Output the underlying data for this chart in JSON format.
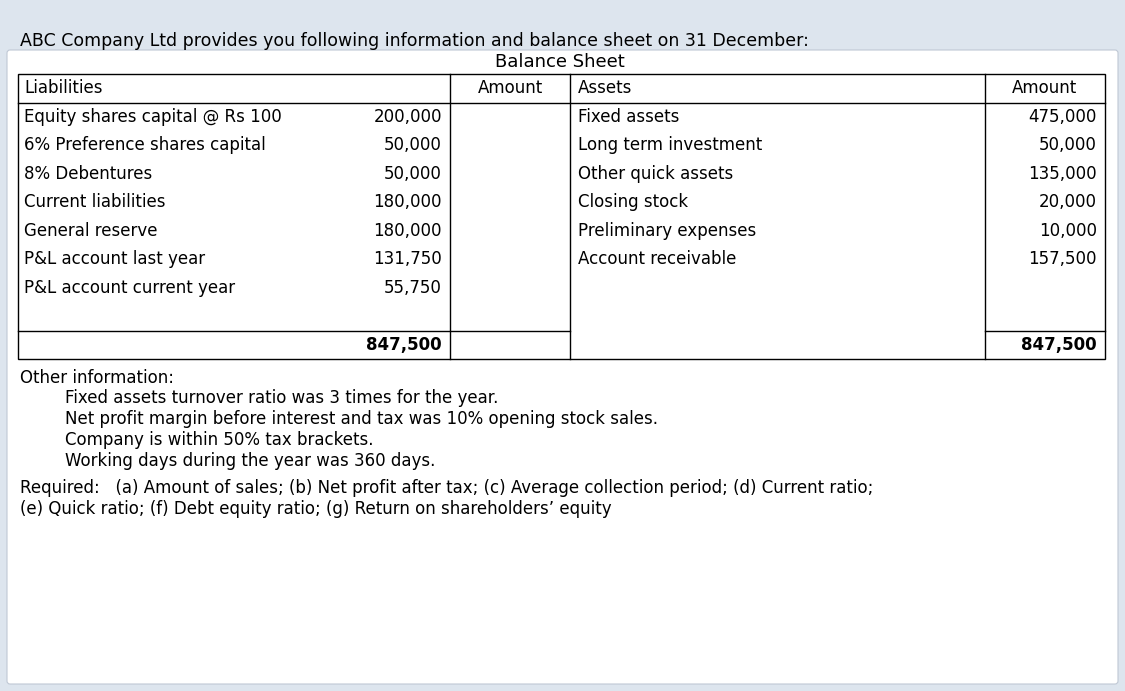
{
  "background_color": "#dde5ee",
  "card_color": "#ffffff",
  "header_text": "ABC Company Ltd provides you following information and balance sheet on 31 December:",
  "table_title": "Balance Sheet",
  "col_headers": [
    "Liabilities",
    "Amount",
    "Assets",
    "Amount"
  ],
  "liabilities": [
    "Equity shares capital @ Rs 100",
    "6% Preference shares capital",
    "8% Debentures",
    "Current liabilities",
    "General reserve",
    "P&L account last year",
    "P&L account current year",
    "",
    ""
  ],
  "liabilities_amounts": [
    "200,000",
    "50,000",
    "50,000",
    "180,000",
    "180,000",
    "131,750",
    "55,750",
    "",
    "847,500"
  ],
  "assets": [
    "Fixed assets",
    "Long term investment",
    "Other quick assets",
    "Closing stock",
    "Preliminary expenses",
    "Account receivable",
    "",
    "",
    ""
  ],
  "assets_amounts": [
    "475,000",
    "50,000",
    "135,000",
    "20,000",
    "10,000",
    "157,500",
    "",
    "",
    "847,500"
  ],
  "other_info_header": "Other information:",
  "other_info_items": [
    "Fixed assets turnover ratio was 3 times for the year.",
    "Net profit margin before interest and tax was 10% opening stock sales.",
    "Company is within 50% tax brackets.",
    "Working days during the year was 360 days."
  ],
  "required_text_line1": "Required:   (a) Amount of sales; (b) Net profit after tax; (c) Average collection period; (d) Current ratio;",
  "required_text_line2": "(e) Quick ratio; (f) Debt equity ratio; (g) Return on shareholders’ equity",
  "font_size_header": 12.5,
  "font_size_table": 12.0,
  "font_size_table_header": 12.0,
  "font_size_other": 12.0,
  "font_size_required": 12.0,
  "table_title_fontsize": 13.0
}
